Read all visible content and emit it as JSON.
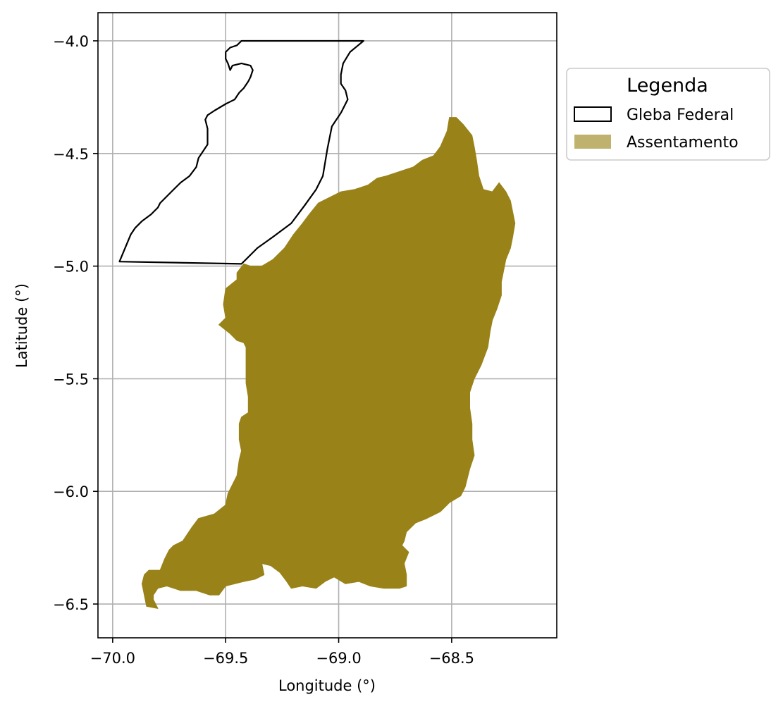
{
  "chart_data": {
    "type": "map",
    "xlabel": "Longitude (°)",
    "ylabel": "Latitude (°)",
    "xlim": [
      -70.065,
      -68.035
    ],
    "ylim": [
      -6.65,
      -3.875
    ],
    "xticks": [
      {
        "value": -70.0,
        "label": "−70.0"
      },
      {
        "value": -69.5,
        "label": "−69.5"
      },
      {
        "value": -69.0,
        "label": "−69.0"
      },
      {
        "value": -68.5,
        "label": "−68.5"
      }
    ],
    "yticks": [
      {
        "value": -4.0,
        "label": "−4.0"
      },
      {
        "value": -4.5,
        "label": "−4.5"
      },
      {
        "value": -5.0,
        "label": "−5.0"
      },
      {
        "value": -5.5,
        "label": "−5.5"
      },
      {
        "value": -6.0,
        "label": "−6.0"
      },
      {
        "value": -6.5,
        "label": "−6.5"
      }
    ],
    "grid": true,
    "legend": {
      "title": "Legenda",
      "placement": "outside-right",
      "entries": [
        {
          "label": "Gleba Federal",
          "style": "outline",
          "edge_color": "#000000",
          "fill_color": "#ffffff"
        },
        {
          "label": "Assentamento",
          "style": "filled",
          "fill_color": "#bfb26f"
        }
      ]
    },
    "series": [
      {
        "name": "Gleba Federal",
        "kind": "outline",
        "color": "#000000",
        "coordinates": [
          [
            -69.42,
            -4.0
          ],
          [
            -68.89,
            -4.0
          ],
          [
            -68.95,
            -4.05
          ],
          [
            -68.98,
            -4.1
          ],
          [
            -68.99,
            -4.15
          ],
          [
            -68.99,
            -4.19
          ],
          [
            -68.97,
            -4.22
          ],
          [
            -68.96,
            -4.26
          ],
          [
            -68.99,
            -4.32
          ],
          [
            -69.03,
            -4.38
          ],
          [
            -69.04,
            -4.43
          ],
          [
            -69.05,
            -4.48
          ],
          [
            -69.06,
            -4.54
          ],
          [
            -69.07,
            -4.6
          ],
          [
            -69.1,
            -4.66
          ],
          [
            -69.15,
            -4.73
          ],
          [
            -69.21,
            -4.81
          ],
          [
            -69.29,
            -4.87
          ],
          [
            -69.36,
            -4.92
          ],
          [
            -69.41,
            -4.97
          ],
          [
            -69.43,
            -4.99
          ],
          [
            -69.97,
            -4.98
          ],
          [
            -69.92,
            -4.86
          ],
          [
            -69.9,
            -4.83
          ],
          [
            -69.87,
            -4.8
          ],
          [
            -69.83,
            -4.77
          ],
          [
            -69.8,
            -4.74
          ],
          [
            -69.79,
            -4.72
          ],
          [
            -69.76,
            -4.69
          ],
          [
            -69.73,
            -4.66
          ],
          [
            -69.7,
            -4.63
          ],
          [
            -69.66,
            -4.6
          ],
          [
            -69.63,
            -4.56
          ],
          [
            -69.62,
            -4.52
          ],
          [
            -69.6,
            -4.49
          ],
          [
            -69.58,
            -4.46
          ],
          [
            -69.58,
            -4.39
          ],
          [
            -69.59,
            -4.35
          ],
          [
            -69.58,
            -4.33
          ],
          [
            -69.55,
            -4.31
          ],
          [
            -69.5,
            -4.28
          ],
          [
            -69.48,
            -4.27
          ],
          [
            -69.46,
            -4.26
          ],
          [
            -69.44,
            -4.23
          ],
          [
            -69.42,
            -4.21
          ],
          [
            -69.4,
            -4.18
          ],
          [
            -69.39,
            -4.16
          ],
          [
            -69.38,
            -4.13
          ],
          [
            -69.39,
            -4.11
          ],
          [
            -69.43,
            -4.1
          ],
          [
            -69.47,
            -4.11
          ],
          [
            -69.48,
            -4.13
          ],
          [
            -69.49,
            -4.1
          ],
          [
            -69.5,
            -4.08
          ],
          [
            -69.5,
            -4.05
          ],
          [
            -69.48,
            -4.03
          ],
          [
            -69.45,
            -4.02
          ],
          [
            -69.43,
            -4.0
          ]
        ]
      },
      {
        "name": "Assentamento",
        "kind": "filled",
        "color": "#998218",
        "coordinates": [
          [
            -68.51,
            -4.34
          ],
          [
            -68.48,
            -4.34
          ],
          [
            -68.45,
            -4.37
          ],
          [
            -68.41,
            -4.42
          ],
          [
            -68.4,
            -4.47
          ],
          [
            -68.39,
            -4.53
          ],
          [
            -68.38,
            -4.6
          ],
          [
            -68.36,
            -4.66
          ],
          [
            -68.32,
            -4.67
          ],
          [
            -68.29,
            -4.63
          ],
          [
            -68.26,
            -4.67
          ],
          [
            -68.24,
            -4.71
          ],
          [
            -68.23,
            -4.76
          ],
          [
            -68.22,
            -4.81
          ],
          [
            -68.23,
            -4.87
          ],
          [
            -68.24,
            -4.92
          ],
          [
            -68.26,
            -4.97
          ],
          [
            -68.27,
            -5.02
          ],
          [
            -68.28,
            -5.07
          ],
          [
            -68.28,
            -5.13
          ],
          [
            -68.3,
            -5.19
          ],
          [
            -68.32,
            -5.24
          ],
          [
            -68.33,
            -5.29
          ],
          [
            -68.34,
            -5.36
          ],
          [
            -68.37,
            -5.44
          ],
          [
            -68.4,
            -5.5
          ],
          [
            -68.42,
            -5.56
          ],
          [
            -68.42,
            -5.63
          ],
          [
            -68.41,
            -5.7
          ],
          [
            -68.41,
            -5.77
          ],
          [
            -68.4,
            -5.84
          ],
          [
            -68.42,
            -5.9
          ],
          [
            -68.44,
            -5.98
          ],
          [
            -68.46,
            -6.02
          ],
          [
            -68.51,
            -6.05
          ],
          [
            -68.55,
            -6.09
          ],
          [
            -68.61,
            -6.12
          ],
          [
            -68.66,
            -6.14
          ],
          [
            -68.7,
            -6.18
          ],
          [
            -68.71,
            -6.22
          ],
          [
            -68.72,
            -6.24
          ],
          [
            -68.69,
            -6.27
          ],
          [
            -68.71,
            -6.32
          ],
          [
            -68.7,
            -6.37
          ],
          [
            -68.7,
            -6.42
          ],
          [
            -68.73,
            -6.43
          ],
          [
            -68.8,
            -6.43
          ],
          [
            -68.86,
            -6.42
          ],
          [
            -68.91,
            -6.4
          ],
          [
            -68.97,
            -6.41
          ],
          [
            -69.02,
            -6.38
          ],
          [
            -69.06,
            -6.4
          ],
          [
            -69.1,
            -6.43
          ],
          [
            -69.16,
            -6.42
          ],
          [
            -69.21,
            -6.43
          ],
          [
            -69.23,
            -6.4
          ],
          [
            -69.26,
            -6.36
          ],
          [
            -69.3,
            -6.33
          ],
          [
            -69.34,
            -6.32
          ],
          [
            -69.33,
            -6.37
          ],
          [
            -69.37,
            -6.39
          ],
          [
            -69.42,
            -6.4
          ],
          [
            -69.5,
            -6.42
          ],
          [
            -69.53,
            -6.46
          ],
          [
            -69.57,
            -6.46
          ],
          [
            -69.63,
            -6.44
          ],
          [
            -69.7,
            -6.44
          ],
          [
            -69.76,
            -6.42
          ],
          [
            -69.8,
            -6.43
          ],
          [
            -69.82,
            -6.46
          ],
          [
            -69.82,
            -6.48
          ],
          [
            -69.8,
            -6.52
          ],
          [
            -69.85,
            -6.51
          ],
          [
            -69.86,
            -6.46
          ],
          [
            -69.87,
            -6.41
          ],
          [
            -69.86,
            -6.37
          ],
          [
            -69.84,
            -6.35
          ],
          [
            -69.79,
            -6.35
          ],
          [
            -69.77,
            -6.3
          ],
          [
            -69.75,
            -6.26
          ],
          [
            -69.73,
            -6.24
          ],
          [
            -69.69,
            -6.22
          ],
          [
            -69.65,
            -6.16
          ],
          [
            -69.62,
            -6.12
          ],
          [
            -69.55,
            -6.1
          ],
          [
            -69.5,
            -6.06
          ],
          [
            -69.49,
            -6.01
          ],
          [
            -69.47,
            -5.97
          ],
          [
            -69.45,
            -5.93
          ],
          [
            -69.44,
            -5.86
          ],
          [
            -69.43,
            -5.82
          ],
          [
            -69.44,
            -5.77
          ],
          [
            -69.44,
            -5.7
          ],
          [
            -69.43,
            -5.67
          ],
          [
            -69.4,
            -5.65
          ],
          [
            -69.4,
            -5.58
          ],
          [
            -69.41,
            -5.52
          ],
          [
            -69.41,
            -5.43
          ],
          [
            -69.41,
            -5.36
          ],
          [
            -69.42,
            -5.34
          ],
          [
            -69.45,
            -5.33
          ],
          [
            -69.48,
            -5.3
          ],
          [
            -69.53,
            -5.26
          ],
          [
            -69.5,
            -5.23
          ],
          [
            -69.51,
            -5.17
          ],
          [
            -69.5,
            -5.1
          ],
          [
            -69.45,
            -5.06
          ],
          [
            -69.45,
            -5.03
          ],
          [
            -69.42,
            -4.99
          ],
          [
            -69.39,
            -5.0
          ],
          [
            -69.34,
            -5.0
          ],
          [
            -69.29,
            -4.97
          ],
          [
            -69.24,
            -4.92
          ],
          [
            -69.2,
            -4.86
          ],
          [
            -69.16,
            -4.81
          ],
          [
            -69.13,
            -4.77
          ],
          [
            -69.09,
            -4.72
          ],
          [
            -69.05,
            -4.7
          ],
          [
            -68.99,
            -4.67
          ],
          [
            -68.93,
            -4.66
          ],
          [
            -68.87,
            -4.64
          ],
          [
            -68.83,
            -4.61
          ],
          [
            -68.79,
            -4.6
          ],
          [
            -68.73,
            -4.58
          ],
          [
            -68.67,
            -4.56
          ],
          [
            -68.63,
            -4.53
          ],
          [
            -68.58,
            -4.51
          ],
          [
            -68.55,
            -4.47
          ],
          [
            -68.52,
            -4.4
          ]
        ]
      }
    ]
  }
}
